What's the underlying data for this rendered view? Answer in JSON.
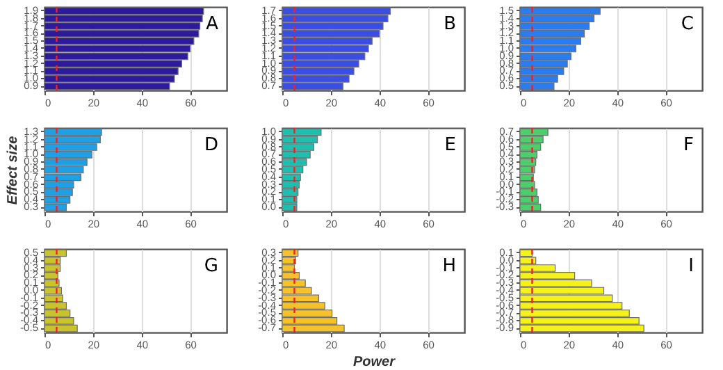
{
  "chart_data": [
    {
      "type": "bar",
      "orientation": "horizontal",
      "categories": [
        "1.9",
        "1.8",
        "1.7",
        "1.6",
        "1.5",
        "1.4",
        "1.3",
        "1.2",
        "1.1",
        "1.0",
        "0.9"
      ],
      "values": [
        65.5,
        65,
        64,
        63.5,
        61.5,
        60,
        59,
        56.5,
        55,
        53.5,
        51.5
      ],
      "color": "#2e1a9c",
      "xlim": [
        0,
        75
      ],
      "xticks": [
        0,
        20,
        40,
        60
      ],
      "grid": "x",
      "ref_lines": [
        {
          "axis": "x",
          "value": 5,
          "color": "#e8262a",
          "line_style": "dashed"
        }
      ],
      "annotations": [
        "A"
      ]
    },
    {
      "type": "bar",
      "orientation": "horizontal",
      "categories": [
        "1.7",
        "1.6",
        "1.5",
        "1.4",
        "1.3",
        "1.2",
        "1.1",
        "1.0",
        "0.9",
        "0.8",
        "0.7"
      ],
      "values": [
        44.5,
        43.5,
        41.5,
        40,
        37,
        35.5,
        34,
        31.5,
        29.5,
        27.5,
        25
      ],
      "color": "#3a4ee6",
      "xlim": [
        0,
        75
      ],
      "xticks": [
        0,
        20,
        40,
        60
      ],
      "grid": "x",
      "ref_lines": [
        {
          "axis": "x",
          "value": 5,
          "color": "#e8262a",
          "line_style": "dashed"
        }
      ],
      "annotations": [
        "B"
      ]
    },
    {
      "type": "bar",
      "orientation": "horizontal",
      "categories": [
        "1.5",
        "1.4",
        "1.3",
        "1.2",
        "1.1",
        "1.0",
        "0.9",
        "0.8",
        "0.7",
        "0.6",
        "0.5"
      ],
      "values": [
        33,
        30.5,
        28.5,
        26.5,
        25,
        23,
        21,
        19.5,
        18,
        15.5,
        14
      ],
      "color": "#2a7df0",
      "xlim": [
        0,
        75
      ],
      "xticks": [
        0,
        20,
        40,
        60
      ],
      "grid": "x",
      "ref_lines": [
        {
          "axis": "x",
          "value": 5,
          "color": "#e8262a",
          "line_style": "dashed"
        }
      ],
      "annotations": [
        "C"
      ]
    },
    {
      "type": "bar",
      "orientation": "horizontal",
      "categories": [
        "1.3",
        "1.2",
        "1.1",
        "1.0",
        "0.9",
        "0.8",
        "0.7",
        "0.6",
        "0.5",
        "0.4",
        "0.3"
      ],
      "values": [
        23.5,
        23,
        21.5,
        19.5,
        17.5,
        16,
        15,
        12,
        11.5,
        10.5,
        9
      ],
      "color": "#1ea0e6",
      "xlim": [
        0,
        75
      ],
      "xticks": [
        0,
        20,
        40,
        60
      ],
      "grid": "x",
      "ylabel": "Effect size",
      "ref_lines": [
        {
          "axis": "x",
          "value": 5,
          "color": "#e8262a",
          "line_style": "dashed"
        }
      ],
      "annotations": [
        "D"
      ]
    },
    {
      "type": "bar",
      "orientation": "horizontal",
      "categories": [
        "1.0",
        "0.9",
        "0.8",
        "0.7",
        "0.6",
        "0.5",
        "0.4",
        "0.3",
        "0.2",
        "0.1",
        "0.0"
      ],
      "values": [
        16,
        14.5,
        13,
        11.5,
        10,
        8.5,
        7.5,
        7,
        6.5,
        6,
        6
      ],
      "color": "#1fbfb0",
      "xlim": [
        0,
        75
      ],
      "xticks": [
        0,
        20,
        40,
        60
      ],
      "grid": "x",
      "ref_lines": [
        {
          "axis": "x",
          "value": 5,
          "color": "#e8262a",
          "line_style": "dashed"
        }
      ],
      "annotations": [
        "E"
      ]
    },
    {
      "type": "bar",
      "orientation": "horizontal",
      "categories": [
        "0.7",
        "0.6",
        "0.5",
        "0.4",
        "0.3",
        "0.2",
        "0.1",
        "0.0",
        "-0.1",
        "-0.2",
        "-0.3"
      ],
      "values": [
        11.5,
        9.5,
        8.5,
        7,
        6.5,
        6,
        5.5,
        6,
        7,
        7.5,
        8.5
      ],
      "color": "#4ccf6a",
      "xlim": [
        0,
        75
      ],
      "xticks": [
        0,
        20,
        40,
        60
      ],
      "grid": "x",
      "ref_lines": [
        {
          "axis": "x",
          "value": 5,
          "color": "#e8262a",
          "line_style": "dashed"
        }
      ],
      "annotations": [
        "F"
      ]
    },
    {
      "type": "bar",
      "orientation": "horizontal",
      "categories": [
        "0.5",
        "0.4",
        "0.3",
        "0.2",
        "0.1",
        "0.0",
        "-0.1",
        "-0.2",
        "-0.3",
        "-0.4",
        "-0.5"
      ],
      "values": [
        9,
        6.5,
        6.5,
        5.5,
        6,
        7,
        7.5,
        9,
        10.5,
        12,
        13.5
      ],
      "color": "#c8c42a",
      "xlim": [
        0,
        75
      ],
      "xticks": [
        0,
        20,
        40,
        60
      ],
      "grid": "x",
      "ref_lines": [
        {
          "axis": "x",
          "value": 5,
          "color": "#e8262a",
          "line_style": "dashed"
        }
      ],
      "annotations": [
        "G"
      ]
    },
    {
      "type": "bar",
      "orientation": "horizontal",
      "categories": [
        "0.3",
        "0.2",
        "0.1",
        "0.0",
        "-0.1",
        "-0.2",
        "-0.3",
        "-0.4",
        "-0.5",
        "-0.6",
        "-0.7"
      ],
      "values": [
        6.5,
        5.5,
        5,
        7,
        9.5,
        12,
        15,
        17.5,
        20.5,
        22.5,
        25.5
      ],
      "color": "#f5c22a",
      "xlim": [
        0,
        75
      ],
      "xticks": [
        0,
        20,
        40,
        60
      ],
      "grid": "x",
      "xlabel": "Power",
      "ref_lines": [
        {
          "axis": "x",
          "value": 5,
          "color": "#e8262a",
          "line_style": "dashed"
        }
      ],
      "annotations": [
        "H"
      ]
    },
    {
      "type": "bar",
      "orientation": "horizontal",
      "categories": [
        "0.1",
        "0.0",
        "-0.1",
        "-0.2",
        "-0.3",
        "-0.4",
        "-0.5",
        "-0.6",
        "-0.7",
        "-0.8",
        "-0.9"
      ],
      "values": [
        5,
        6.5,
        14.5,
        22.5,
        29.5,
        34.5,
        38,
        42,
        45,
        49,
        51
      ],
      "color": "#f5f21a",
      "xlim": [
        0,
        75
      ],
      "xticks": [
        0,
        20,
        40,
        60
      ],
      "grid": "x",
      "ref_lines": [
        {
          "axis": "x",
          "value": 5,
          "color": "#e8262a",
          "line_style": "dashed"
        }
      ],
      "annotations": [
        "I"
      ]
    }
  ]
}
